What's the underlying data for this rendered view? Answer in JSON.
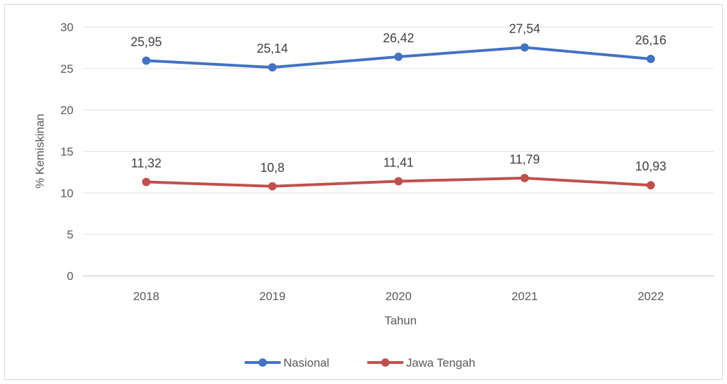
{
  "chart_data": {
    "type": "line",
    "title": "",
    "xlabel": "Tahun",
    "ylabel": "% Kemiskinan",
    "categories": [
      "2018",
      "2019",
      "2020",
      "2021",
      "2022"
    ],
    "ylim": [
      0,
      30
    ],
    "yticks": [
      0,
      5,
      10,
      15,
      20,
      25,
      30
    ],
    "grid": true,
    "legend_position": "bottom",
    "series": [
      {
        "name": "Nasional",
        "color": "#4472c4",
        "values": [
          25.95,
          25.14,
          26.42,
          27.54,
          26.16
        ],
        "labels": [
          "25,95",
          "25,14",
          "26,42",
          "27,54",
          "26,16"
        ]
      },
      {
        "name": "Jawa Tengah",
        "color": "#c0504d",
        "values": [
          11.32,
          10.8,
          11.41,
          11.79,
          10.93
        ],
        "labels": [
          "11,32",
          "10,8",
          "11,41",
          "11,79",
          "10,93"
        ]
      }
    ]
  }
}
